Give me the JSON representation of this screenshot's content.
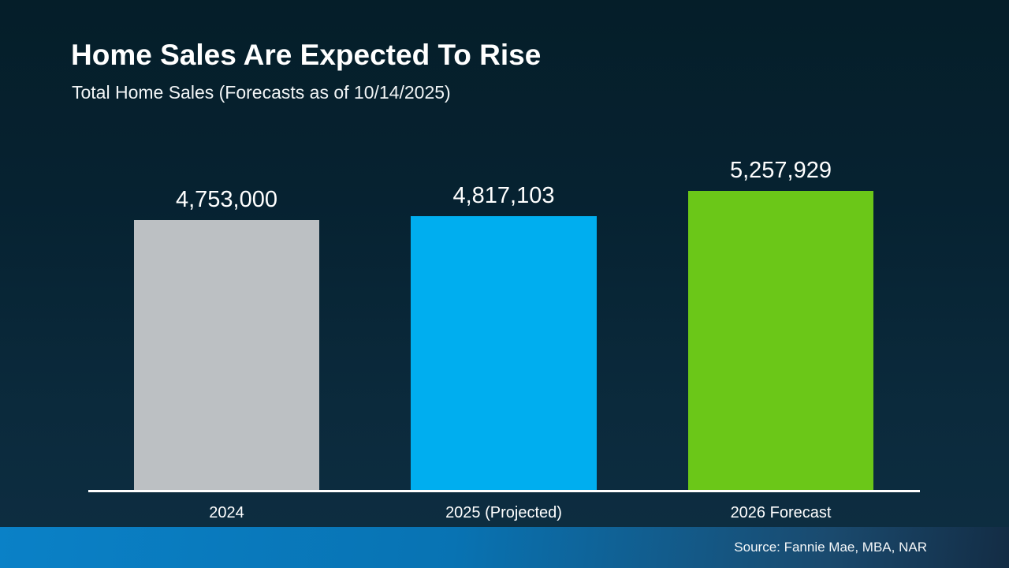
{
  "slide": {
    "title": "Home Sales Are Expected To Rise",
    "subtitle": "Total Home Sales (Forecasts as of 10/14/2025)",
    "source": "Source: Fannie Mae, MBA, NAR"
  },
  "colors": {
    "background_top": "#051e29",
    "background_bottom": "#0e2e42",
    "axis_line": "#ffffff",
    "footer_gradient_left": "#0a81c7",
    "footer_gradient_right": "#132c44",
    "text": "#ffffff"
  },
  "chart_data": {
    "type": "bar",
    "title": "Home Sales Are Expected To Rise",
    "subtitle": "Total Home Sales (Forecasts as of 10/14/2025)",
    "categories": [
      "2024",
      "2025 (Projected)",
      "2026 Forecast"
    ],
    "values": [
      4753000,
      4817103,
      5257929
    ],
    "value_labels": [
      "4,753,000",
      "4,817,103",
      "5,257,929"
    ],
    "bar_colors": [
      "#bcc0c3",
      "#00aeef",
      "#6bc718"
    ],
    "xlabel": "",
    "ylabel": "",
    "ylim": [
      0,
      5257929
    ],
    "grid": false,
    "legend": false,
    "value_labels_position": "above-bars"
  }
}
